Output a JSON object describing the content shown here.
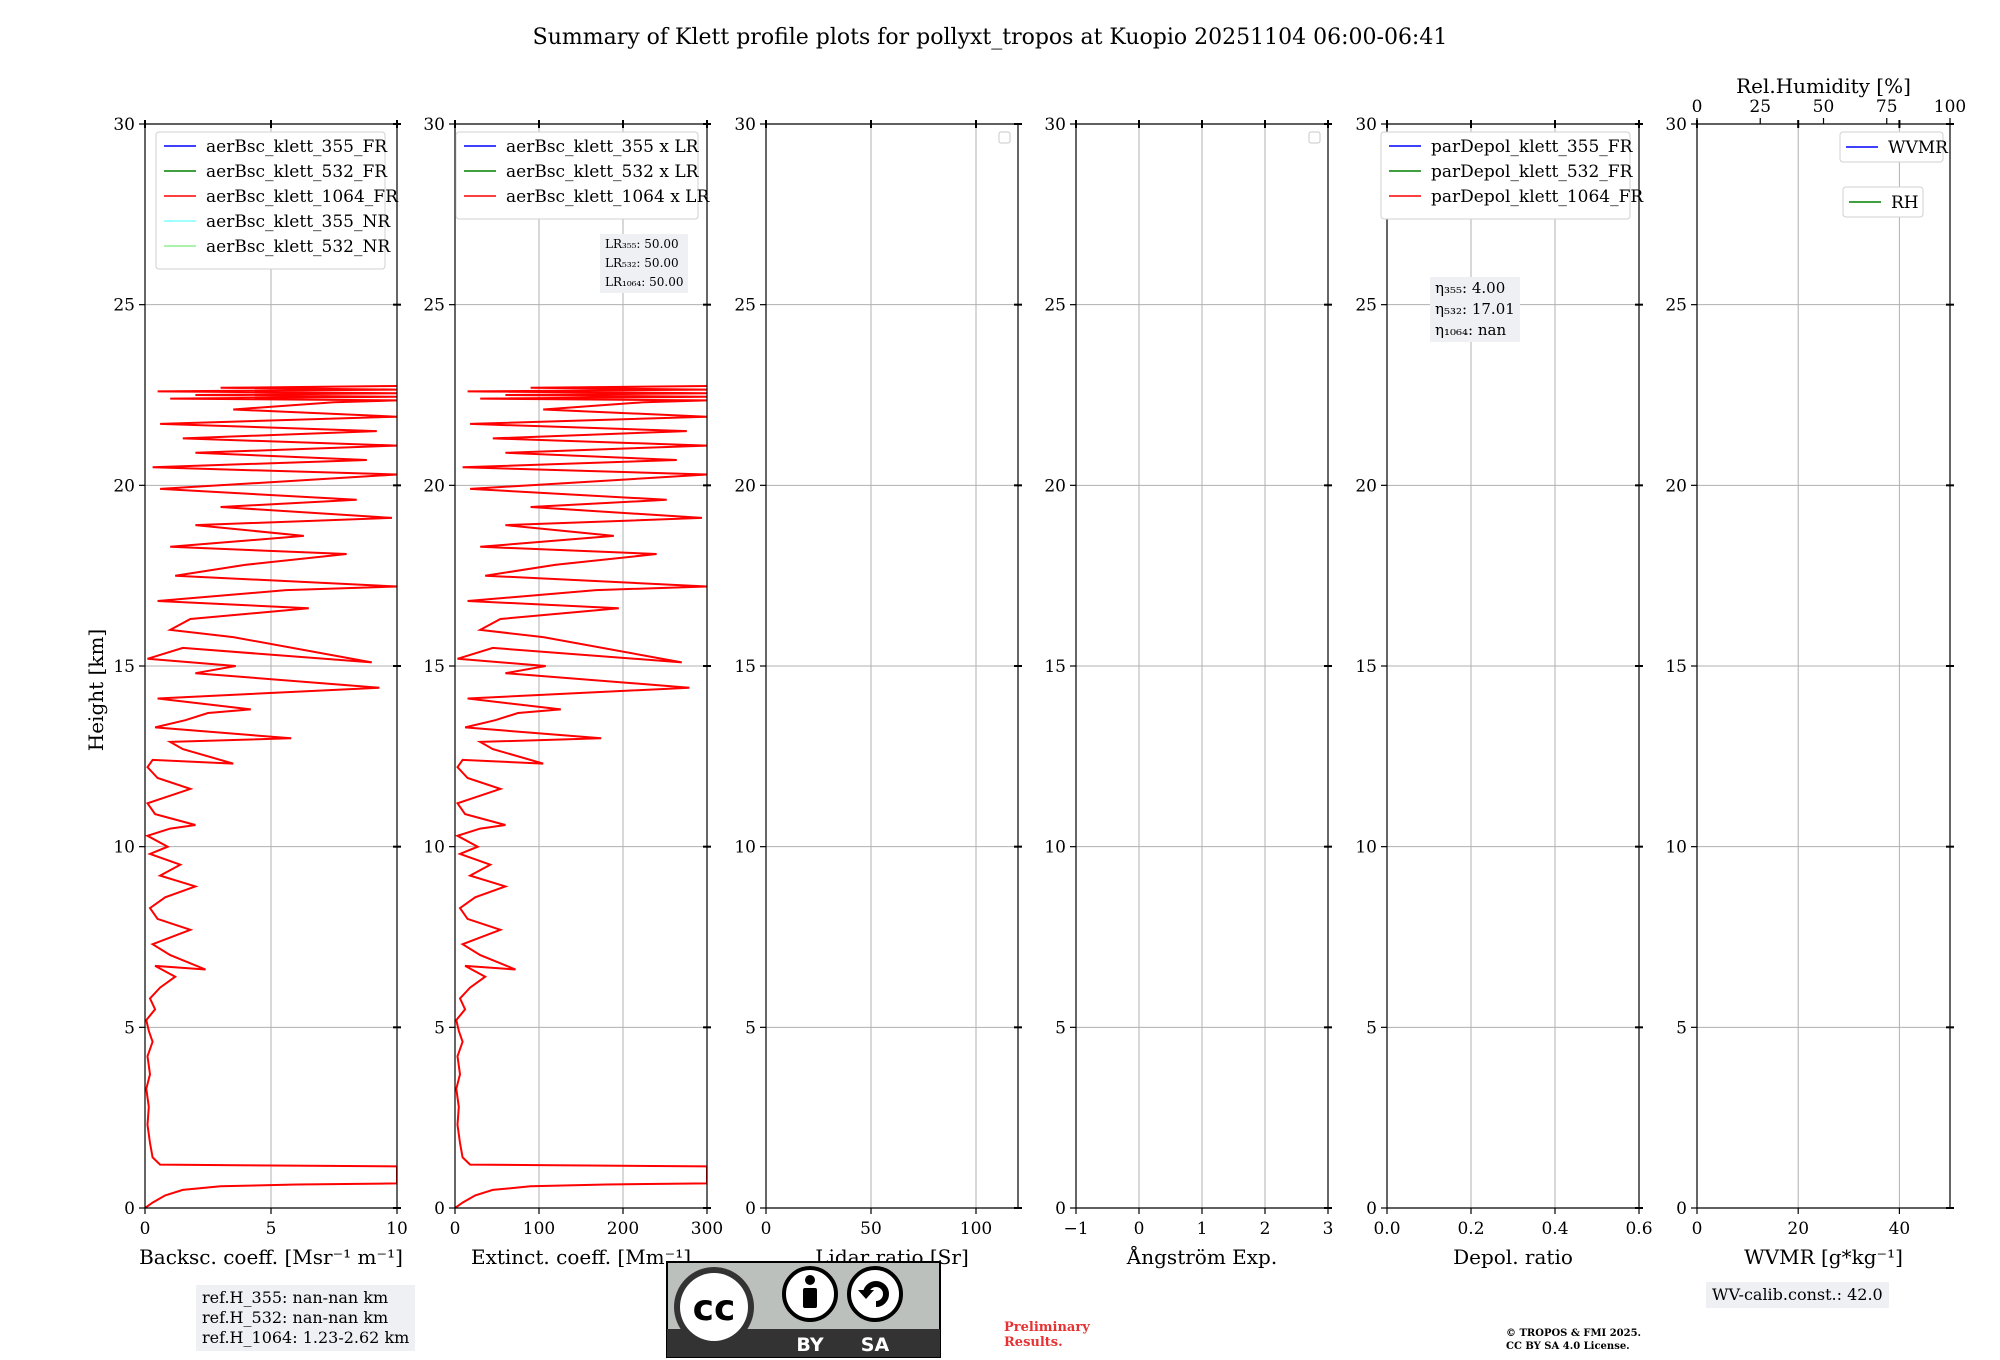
{
  "title": "Summary of Klett profile plots for pollyxt_tropos at Kuopio 20251104 06:00-06:41",
  "ylabel": "Height [km]",
  "colors": {
    "blue": "#0000ff",
    "green": "#008000",
    "red": "#ff0000",
    "cyan": "#80ffff",
    "lightgreen": "#90ee90",
    "grid": "#b0b0b0"
  },
  "chart_data": [
    {
      "type": "line",
      "id": "bsc",
      "xlabel": "Backsc. coeff. [Msr⁻¹ m⁻¹]",
      "xlim": [
        0,
        10
      ],
      "ylim": [
        0,
        30
      ],
      "xticks": [
        "0",
        "5",
        "10"
      ],
      "xtick_values": [
        0,
        5,
        10
      ],
      "yticks": [
        "0",
        "5",
        "10",
        "15",
        "20",
        "25",
        "30"
      ],
      "legend": [
        "aerBsc_klett_355_FR",
        "aerBsc_klett_532_FR",
        "aerBsc_klett_1064_FR",
        "aerBsc_klett_355_NR",
        "aerBsc_klett_532_NR"
      ],
      "legend_colors": [
        "#0000ff",
        "#008000",
        "#ff0000",
        "#80ffff",
        "#90ee90"
      ],
      "series": [
        {
          "name": "aerBsc_klett_1064_FR",
          "color": "#ff0000",
          "x": [
            0.0,
            0.3,
            0.8,
            1.5,
            3.0,
            6.0,
            10.0,
            10.0,
            0.6,
            0.3,
            0.2,
            0.1,
            0.15,
            0.05,
            0.2,
            0.1,
            0.3,
            0.15,
            0.05,
            0.4,
            0.2,
            0.6,
            1.2,
            0.4,
            2.4,
            1.0,
            0.3,
            1.8,
            0.5,
            0.2,
            0.8,
            2.0,
            0.6,
            1.4,
            0.2,
            0.9,
            0.1,
            1.0,
            2.0,
            0.4,
            0.1,
            1.8,
            0.5,
            0.1,
            0.3,
            3.5,
            1.5,
            1.0,
            5.8,
            0.4,
            1.6,
            2.5,
            4.2,
            0.5,
            9.3,
            2.0,
            3.6,
            0.1,
            1.5,
            9.0,
            3.5,
            1.0,
            1.8,
            6.5,
            0.5,
            5.6,
            10.0,
            1.2,
            4.0,
            8.0,
            1.0,
            6.3,
            2.0,
            9.8,
            3.0,
            8.4,
            0.6,
            5.3,
            10.0,
            0.3,
            8.8,
            2.0,
            10.0,
            1.5,
            9.2,
            0.6,
            10.0,
            3.5,
            7.5,
            10.0,
            1.0,
            10.0,
            2.0,
            10.0,
            0.5,
            10.0,
            3.0,
            10.0
          ],
          "y": [
            0.0,
            0.15,
            0.35,
            0.5,
            0.6,
            0.65,
            0.68,
            1.15,
            1.2,
            1.4,
            1.8,
            2.3,
            2.8,
            3.3,
            3.7,
            4.2,
            4.6,
            4.9,
            5.2,
            5.5,
            5.8,
            6.1,
            6.4,
            6.7,
            6.6,
            7.0,
            7.3,
            7.7,
            8.0,
            8.3,
            8.6,
            8.9,
            9.2,
            9.5,
            9.8,
            10.0,
            10.3,
            10.5,
            10.6,
            10.9,
            11.2,
            11.6,
            11.9,
            12.2,
            12.4,
            12.3,
            12.7,
            12.9,
            13.0,
            13.3,
            13.5,
            13.7,
            13.8,
            14.1,
            14.4,
            14.8,
            15.0,
            15.2,
            15.5,
            15.1,
            15.8,
            16.0,
            16.3,
            16.6,
            16.8,
            17.1,
            17.2,
            17.5,
            17.8,
            18.1,
            18.3,
            18.6,
            18.9,
            19.1,
            19.4,
            19.6,
            19.9,
            20.1,
            20.3,
            20.5,
            20.7,
            20.9,
            21.1,
            21.3,
            21.5,
            21.7,
            21.9,
            22.1,
            22.3,
            22.35,
            22.4,
            22.45,
            22.5,
            22.55,
            22.6,
            22.65,
            22.7,
            22.75
          ]
        }
      ],
      "annotation": [
        "ref.H_355: nan-nan km",
        "ref.H_532: nan-nan km",
        "ref.H_1064: 1.23-2.62 km"
      ]
    },
    {
      "type": "line",
      "id": "ext",
      "xlabel": "Extinct. coeff. [Mm⁻¹]",
      "xlim": [
        0,
        300
      ],
      "ylim": [
        0,
        30
      ],
      "xticks": [
        "0",
        "100",
        "200",
        "300"
      ],
      "xtick_values": [
        0,
        100,
        200,
        300
      ],
      "yticks": [
        "0",
        "5",
        "10",
        "15",
        "20",
        "25",
        "30"
      ],
      "legend": [
        "aerBsc_klett_355 x LR",
        "aerBsc_klett_532 x LR",
        "aerBsc_klett_1064 x LR"
      ],
      "legend_colors": [
        "#0000ff",
        "#008000",
        "#ff0000"
      ],
      "scale": 30,
      "annotation": [
        "LR₃₅₅: 50.00",
        "LR₅₃₂: 50.00",
        "LR₁₀₆₄: 50.00"
      ]
    },
    {
      "type": "line",
      "id": "lr",
      "xlabel": "Lidar ratio [Sr]",
      "xlim": [
        0,
        120
      ],
      "ylim": [
        0,
        30
      ],
      "xticks": [
        "0",
        "50",
        "100"
      ],
      "xtick_values": [
        0,
        50,
        100
      ],
      "yticks": [
        "0",
        "5",
        "10",
        "15",
        "20",
        "25",
        "30"
      ],
      "series": []
    },
    {
      "type": "line",
      "id": "ae",
      "xlabel": "Ångström Exp.",
      "xlim": [
        -1,
        3
      ],
      "ylim": [
        0,
        30
      ],
      "xticks": [
        "−1",
        "0",
        "1",
        "2",
        "3"
      ],
      "xtick_values": [
        -1,
        0,
        1,
        2,
        3
      ],
      "yticks": [
        "0",
        "5",
        "10",
        "15",
        "20",
        "25",
        "30"
      ],
      "series": []
    },
    {
      "type": "line",
      "id": "depol",
      "xlabel": "Depol. ratio",
      "xlim": [
        0,
        0.6
      ],
      "ylim": [
        0,
        30
      ],
      "xticks": [
        "0.0",
        "0.2",
        "0.4",
        "0.6"
      ],
      "xtick_values": [
        0,
        0.2,
        0.4,
        0.6
      ],
      "yticks": [
        "0",
        "5",
        "10",
        "15",
        "20",
        "25",
        "30"
      ],
      "legend": [
        "parDepol_klett_355_FR",
        "parDepol_klett_532_FR",
        "parDepol_klett_1064_FR"
      ],
      "legend_colors": [
        "#0000ff",
        "#008000",
        "#ff0000"
      ],
      "annotation": [
        "η₃₅₅: 4.00",
        "η₅₃₂: 17.01",
        "η₁₀₆₄: nan"
      ],
      "series": []
    },
    {
      "type": "line",
      "id": "wv",
      "xlabel": "WVMR [g*kg⁻¹]",
      "xlim": [
        0,
        50
      ],
      "ylim": [
        0,
        30
      ],
      "xticks": [
        "0",
        "20",
        "40"
      ],
      "xtick_values": [
        0,
        20,
        40
      ],
      "yticks": [
        "0",
        "5",
        "10",
        "15",
        "20",
        "25",
        "30"
      ],
      "top_xlabel": "Rel.Humidity [%]",
      "top_xlim": [
        0,
        100
      ],
      "top_xticks": [
        "0",
        "25",
        "50",
        "75",
        "100"
      ],
      "top_xtick_values": [
        0,
        25,
        50,
        75,
        100
      ],
      "legend": [
        "WVMR",
        "RH"
      ],
      "legend_colors": [
        "#0000ff",
        "#008000"
      ],
      "annotation": [
        "WV-calib.const.: 42.0"
      ],
      "series": []
    }
  ],
  "license": {
    "cc": "cc",
    "by": "BY",
    "sa": "SA"
  },
  "preliminary": [
    "Preliminary",
    "Results."
  ],
  "copyright": [
    "© TROPOS & FMI 2025.",
    "CC BY SA 4.0 License."
  ]
}
